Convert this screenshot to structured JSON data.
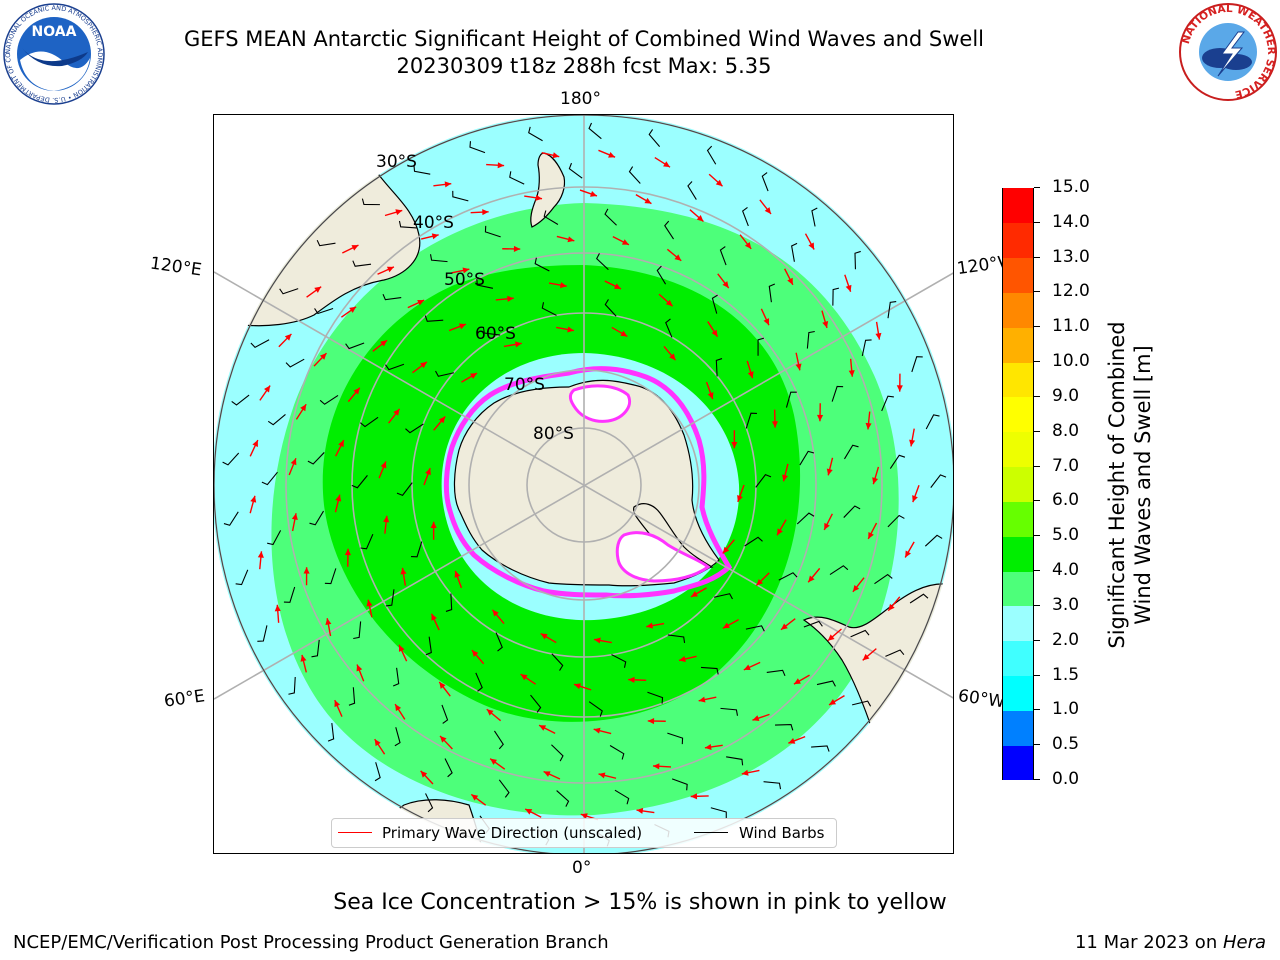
{
  "header": {
    "title_line1": "GEFS MEAN Antarctic Significant Height of Combined Wind Waves and Swell",
    "title_line2": "20230309 t18z 288h fcst   Max: 5.35"
  },
  "map": {
    "projection": "south-polar-stereographic",
    "lon_labels": {
      "top": "180°",
      "bottom": "0°",
      "upper_left": "120°E",
      "upper_right": "120°W",
      "lower_left": "60°E",
      "lower_right": "60°W"
    },
    "lat_labels": [
      "30°S",
      "40°S",
      "50°S",
      "60°S",
      "70°S",
      "80°S"
    ],
    "colors": {
      "land": "#efecdc",
      "ice": "#ff33ff",
      "coast": "#000000",
      "grid": "#b0b0b0",
      "arrow": "#ff0000",
      "barb": "#000000"
    }
  },
  "legend": {
    "wave_label": "Primary Wave Direction (unscaled)",
    "wave_color": "#ff0000",
    "barb_label": "Wind Barbs",
    "barb_color": "#000000"
  },
  "colorbar": {
    "title_line1": "Significant Height of Combined",
    "title_line2": "Wind Waves and Swell [m]",
    "ticks": [
      "0.0",
      "0.5",
      "1.0",
      "1.5",
      "2.0",
      "3.0",
      "4.0",
      "5.0",
      "6.0",
      "7.0",
      "8.0",
      "9.0",
      "10.0",
      "11.0",
      "12.0",
      "13.0",
      "14.0",
      "15.0"
    ],
    "colors": [
      "#0000ff",
      "#0080ff",
      "#00ffff",
      "#40ffff",
      "#9bffff",
      "#4dff7a",
      "#00ee00",
      "#66ff00",
      "#ccff00",
      "#eeff00",
      "#ffff00",
      "#ffe600",
      "#ffb000",
      "#ff8800",
      "#ff5500",
      "#ff2a00",
      "#ff0000"
    ]
  },
  "subtitle": "Sea Ice Concentration > 15% is shown in pink to yellow",
  "footer": {
    "left": "NCEP/EMC/Verification Post Processing Product Generation Branch",
    "right_prefix": "11 Mar 2023 on ",
    "right_host": "Hera"
  },
  "logos": {
    "noaa_text": "NOAA",
    "noaa_ring": "NATIONAL OCEANIC AND ATMOSPHERIC ADMINISTRATION • U.S. DEPARTMENT OF COMMERCE •",
    "nws_ring": "NATIONAL WEATHER SERVICE"
  }
}
